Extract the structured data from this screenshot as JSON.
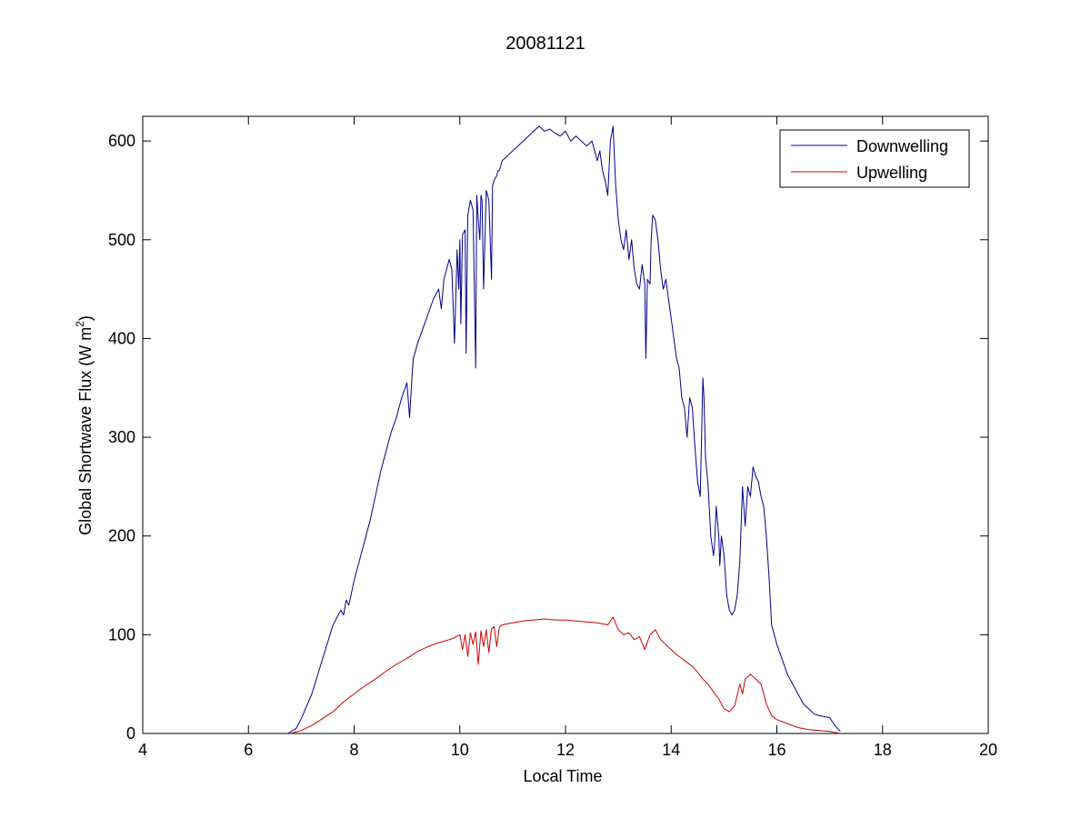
{
  "chart_data": {
    "type": "line",
    "title": "20081121",
    "xlabel": "Local Time",
    "ylabel_main": "Global Shortwave Flux (W m",
    "ylabel_sup": "2",
    "ylabel_close": ")",
    "xlim": [
      4,
      20
    ],
    "ylim": [
      0,
      625
    ],
    "xticks": [
      4,
      6,
      8,
      10,
      12,
      14,
      16,
      18,
      20
    ],
    "yticks": [
      0,
      100,
      200,
      300,
      400,
      500,
      600
    ],
    "grid": false,
    "legend_position": "top-right",
    "series": [
      {
        "name": "Downwelling",
        "color": "#00008b",
        "x": [
          6.75,
          6.9,
          7.0,
          7.2,
          7.4,
          7.6,
          7.75,
          7.8,
          7.85,
          7.9,
          8.0,
          8.1,
          8.2,
          8.25,
          8.3,
          8.4,
          8.5,
          8.6,
          8.7,
          8.8,
          8.9,
          9.0,
          9.05,
          9.1,
          9.12,
          9.15,
          9.2,
          9.3,
          9.4,
          9.5,
          9.6,
          9.65,
          9.7,
          9.75,
          9.8,
          9.85,
          9.9,
          9.95,
          9.98,
          10.0,
          10.02,
          10.05,
          10.1,
          10.12,
          10.15,
          10.2,
          10.25,
          10.3,
          10.32,
          10.35,
          10.38,
          10.4,
          10.42,
          10.45,
          10.5,
          10.55,
          10.6,
          10.62,
          10.65,
          10.7,
          10.72,
          10.75,
          10.8,
          10.9,
          11.0,
          11.1,
          11.2,
          11.3,
          11.4,
          11.5,
          11.6,
          11.7,
          11.8,
          11.9,
          12.0,
          12.1,
          12.2,
          12.3,
          12.4,
          12.5,
          12.55,
          12.6,
          12.65,
          12.7,
          12.75,
          12.8,
          12.85,
          12.9,
          12.95,
          13.0,
          13.05,
          13.1,
          13.15,
          13.2,
          13.25,
          13.3,
          13.35,
          13.4,
          13.45,
          13.5,
          13.52,
          13.55,
          13.6,
          13.62,
          13.65,
          13.7,
          13.75,
          13.8,
          13.85,
          13.9,
          13.95,
          14.0,
          14.05,
          14.1,
          14.15,
          14.2,
          14.25,
          14.3,
          14.35,
          14.4,
          14.45,
          14.5,
          14.55,
          14.6,
          14.62,
          14.65,
          14.7,
          14.75,
          14.8,
          14.82,
          14.85,
          14.9,
          14.92,
          14.95,
          15.0,
          15.05,
          15.1,
          15.15,
          15.2,
          15.25,
          15.3,
          15.35,
          15.4,
          15.45,
          15.5,
          15.55,
          15.6,
          15.65,
          15.7,
          15.75,
          15.8,
          15.85,
          15.9,
          16.0,
          16.1,
          16.2,
          16.3,
          16.4,
          16.5,
          16.6,
          16.7,
          16.8,
          16.9,
          17.0,
          17.1,
          17.2
        ],
        "y": [
          0,
          5,
          15,
          40,
          75,
          110,
          125,
          120,
          135,
          130,
          155,
          175,
          195,
          205,
          215,
          240,
          265,
          285,
          305,
          320,
          340,
          355,
          320,
          365,
          380,
          385,
          395,
          410,
          425,
          440,
          450,
          430,
          460,
          470,
          480,
          470,
          395,
          490,
          450,
          500,
          415,
          505,
          510,
          385,
          525,
          540,
          530,
          370,
          545,
          520,
          500,
          545,
          540,
          450,
          550,
          540,
          460,
          555,
          560,
          565,
          570,
          570,
          580,
          585,
          590,
          595,
          600,
          605,
          610,
          615,
          610,
          612,
          608,
          605,
          610,
          600,
          605,
          600,
          595,
          600,
          590,
          580,
          590,
          570,
          560,
          545,
          600,
          615,
          555,
          520,
          500,
          490,
          510,
          480,
          500,
          470,
          455,
          450,
          475,
          455,
          380,
          460,
          455,
          500,
          525,
          520,
          500,
          470,
          450,
          460,
          440,
          420,
          400,
          380,
          370,
          340,
          330,
          300,
          340,
          330,
          290,
          255,
          240,
          360,
          340,
          280,
          250,
          200,
          180,
          190,
          230,
          200,
          170,
          200,
          180,
          140,
          125,
          120,
          125,
          140,
          175,
          250,
          210,
          250,
          240,
          270,
          260,
          255,
          240,
          230,
          200,
          160,
          110,
          90,
          75,
          60,
          50,
          40,
          30,
          25,
          20,
          18,
          17,
          16,
          8,
          2
        ]
      },
      {
        "name": "Upwelling",
        "color": "#cc0000",
        "x": [
          6.8,
          7.0,
          7.2,
          7.4,
          7.6,
          7.8,
          8.0,
          8.2,
          8.4,
          8.6,
          8.8,
          9.0,
          9.2,
          9.4,
          9.6,
          9.8,
          9.9,
          10.0,
          10.05,
          10.1,
          10.15,
          10.2,
          10.25,
          10.3,
          10.35,
          10.4,
          10.45,
          10.5,
          10.55,
          10.6,
          10.65,
          10.7,
          10.75,
          10.8,
          11.0,
          11.2,
          11.4,
          11.6,
          11.8,
          12.0,
          12.2,
          12.4,
          12.6,
          12.8,
          12.9,
          13.0,
          13.1,
          13.2,
          13.3,
          13.4,
          13.5,
          13.6,
          13.7,
          13.8,
          13.9,
          14.0,
          14.1,
          14.2,
          14.3,
          14.4,
          14.5,
          14.6,
          14.7,
          14.8,
          14.9,
          15.0,
          15.1,
          15.2,
          15.3,
          15.35,
          15.4,
          15.5,
          15.6,
          15.7,
          15.8,
          15.9,
          16.0,
          16.2,
          16.4,
          16.6,
          16.8,
          17.0,
          17.2
        ],
        "y": [
          0,
          3,
          8,
          15,
          22,
          32,
          40,
          48,
          55,
          63,
          70,
          76,
          83,
          88,
          92,
          95,
          97,
          100,
          85,
          100,
          78,
          102,
          90,
          103,
          70,
          104,
          88,
          105,
          82,
          106,
          108,
          88,
          108,
          110,
          112,
          114,
          115,
          116,
          115,
          115,
          114,
          113,
          112,
          110,
          118,
          105,
          100,
          102,
          95,
          98,
          85,
          100,
          105,
          95,
          90,
          85,
          80,
          76,
          72,
          68,
          62,
          55,
          50,
          42,
          35,
          25,
          22,
          28,
          50,
          40,
          55,
          60,
          55,
          50,
          30,
          18,
          14,
          10,
          6,
          4,
          3,
          2,
          0
        ]
      }
    ]
  }
}
